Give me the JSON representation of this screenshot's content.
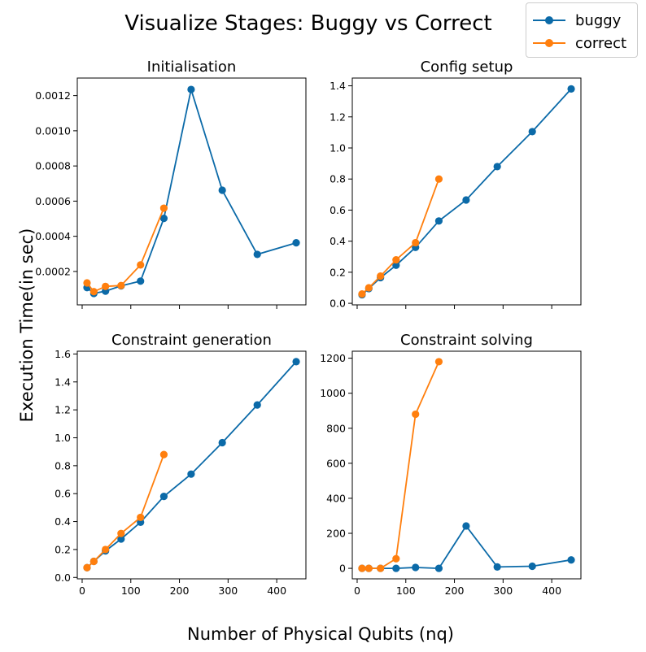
{
  "figure": {
    "title": "Visualize Stages: Buggy vs Correct",
    "xlabel": "Number of Physical Qubits (nq)",
    "ylabel": "Execution Time(in sec)"
  },
  "legend": {
    "placement": "top-right",
    "entries": [
      {
        "name": "buggy",
        "color": "#0b6aa8"
      },
      {
        "name": "correct",
        "color": "#ff7f0e"
      }
    ]
  },
  "chart_data": [
    {
      "type": "line",
      "title": "Initialisation",
      "xlim": [
        -10,
        460
      ],
      "ylim": [
        1e-05,
        0.0013
      ],
      "xticks": [
        0,
        100,
        200,
        300,
        400
      ],
      "yticks": [
        0.0002,
        0.0004,
        0.0006,
        0.0008,
        0.001,
        0.0012
      ],
      "yticklabels": [
        "0.0002",
        "0.0004",
        "0.0006",
        "0.0008",
        "0.0010",
        "0.0012"
      ],
      "show_xticklabels": false,
      "series": [
        {
          "name": "buggy",
          "color": "#0b6aa8",
          "x": [
            10,
            24,
            48,
            80,
            120,
            168,
            224,
            288,
            360,
            440
          ],
          "y": [
            0.000108,
            7.5e-05,
            8.8e-05,
            0.000118,
            0.000145,
            0.000502,
            0.001235,
            0.000662,
            0.000297,
            0.000363
          ]
        },
        {
          "name": "correct",
          "color": "#ff7f0e",
          "x": [
            10,
            24,
            48,
            80,
            120,
            168
          ],
          "y": [
            0.000135,
            8.5e-05,
            0.000115,
            0.00012,
            0.000237,
            0.00056
          ]
        }
      ]
    },
    {
      "type": "line",
      "title": "Config setup",
      "xlim": [
        -10,
        460
      ],
      "ylim": [
        -0.01,
        1.45
      ],
      "xticks": [
        0,
        100,
        200,
        300,
        400
      ],
      "yticks": [
        0.0,
        0.2,
        0.4,
        0.6,
        0.8,
        1.0,
        1.2,
        1.4
      ],
      "yticklabels": [
        "0.0",
        "0.2",
        "0.4",
        "0.6",
        "0.8",
        "1.0",
        "1.2",
        "1.4"
      ],
      "show_xticklabels": false,
      "series": [
        {
          "name": "buggy",
          "color": "#0b6aa8",
          "x": [
            10,
            24,
            48,
            80,
            120,
            168,
            224,
            288,
            360,
            440
          ],
          "y": [
            0.055,
            0.095,
            0.165,
            0.245,
            0.36,
            0.53,
            0.665,
            0.88,
            1.105,
            1.38
          ]
        },
        {
          "name": "correct",
          "color": "#ff7f0e",
          "x": [
            10,
            24,
            48,
            80,
            120,
            168
          ],
          "y": [
            0.06,
            0.1,
            0.175,
            0.28,
            0.39,
            0.8
          ]
        }
      ]
    },
    {
      "type": "line",
      "title": "Constraint generation",
      "xlim": [
        -10,
        460
      ],
      "ylim": [
        -0.01,
        1.62
      ],
      "xticks": [
        0,
        100,
        200,
        300,
        400
      ],
      "yticks": [
        0.0,
        0.2,
        0.4,
        0.6,
        0.8,
        1.0,
        1.2,
        1.4,
        1.6
      ],
      "yticklabels": [
        "0.0",
        "0.2",
        "0.4",
        "0.6",
        "0.8",
        "1.0",
        "1.2",
        "1.4",
        "1.6"
      ],
      "show_xticklabels": true,
      "series": [
        {
          "name": "buggy",
          "color": "#0b6aa8",
          "x": [
            10,
            24,
            48,
            80,
            120,
            168,
            224,
            288,
            360,
            440
          ],
          "y": [
            0.07,
            0.115,
            0.19,
            0.275,
            0.395,
            0.58,
            0.74,
            0.965,
            1.235,
            1.545
          ]
        },
        {
          "name": "correct",
          "color": "#ff7f0e",
          "x": [
            10,
            24,
            48,
            80,
            120,
            168
          ],
          "y": [
            0.07,
            0.115,
            0.2,
            0.315,
            0.43,
            0.88
          ]
        }
      ]
    },
    {
      "type": "line",
      "title": "Constraint solving",
      "xlim": [
        -10,
        460
      ],
      "ylim": [
        -60,
        1240
      ],
      "xticks": [
        0,
        100,
        200,
        300,
        400
      ],
      "yticks": [
        0,
        200,
        400,
        600,
        800,
        1000,
        1200
      ],
      "yticklabels": [
        "0",
        "200",
        "400",
        "600",
        "800",
        "1000",
        "1200"
      ],
      "show_xticklabels": true,
      "series": [
        {
          "name": "buggy",
          "color": "#0b6aa8",
          "x": [
            10,
            24,
            48,
            80,
            120,
            168,
            224,
            288,
            360,
            440
          ],
          "y": [
            0,
            0,
            0,
            0,
            5,
            0,
            242,
            8,
            12,
            48
          ]
        },
        {
          "name": "correct",
          "color": "#ff7f0e",
          "x": [
            10,
            24,
            48,
            80,
            120,
            168
          ],
          "y": [
            0,
            0,
            0,
            55,
            880,
            1180
          ]
        }
      ]
    }
  ]
}
